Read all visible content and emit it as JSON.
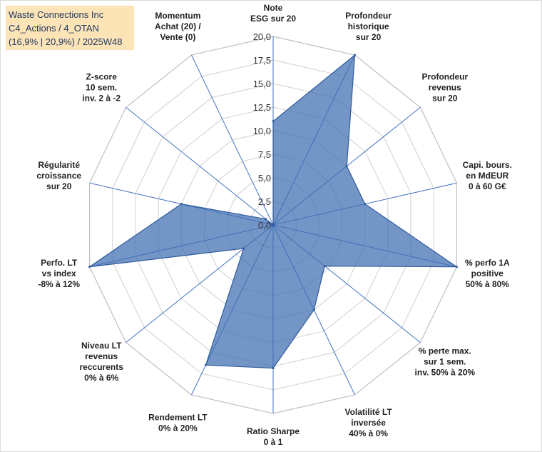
{
  "header": {
    "line1": "Waste Connections Inc",
    "line2": "C4_Actions / 4_OTAN",
    "line3": "(16,9% | 20,9%) / 2025W48"
  },
  "colors": {
    "fill": "#3e6eb0",
    "stroke": "#2e5a9c",
    "spoke": "#4472c4",
    "grid": "#d0d0d0",
    "title_bg": "#fce4b6"
  },
  "chart_data": {
    "type": "radar",
    "title": "Waste Connections Inc",
    "rmin": 0,
    "rmax": 20,
    "tick_step": 2.5,
    "tick_labels": [
      "0,0",
      "2,5",
      "5,0",
      "7,5",
      "10,0",
      "12,5",
      "15,0",
      "17,5",
      "20,0"
    ],
    "axes": [
      {
        "label_lines": [
          "Note",
          "ESG sur 20"
        ],
        "value": 11.0
      },
      {
        "label_lines": [
          "Profondeur",
          "historique",
          "sur 20"
        ],
        "value": 20.0
      },
      {
        "label_lines": [
          "Profondeur",
          "revenus",
          "sur 20"
        ],
        "value": 10.0
      },
      {
        "label_lines": [
          "Capi. bours.",
          "en MdEUR",
          "0 à 60 G€"
        ],
        "value": 10.0
      },
      {
        "label_lines": [
          "% perfo 1A",
          "positive",
          "50% à 80%"
        ],
        "value": 20.0
      },
      {
        "label_lines": [
          "% perte max.",
          "sur 1 sem.",
          "inv. 50% à 20%"
        ],
        "value": 7.0
      },
      {
        "label_lines": [
          "Volatilité LT",
          "inversée",
          "40% à 0%"
        ],
        "value": 10.0
      },
      {
        "label_lines": [
          "Ratio Sharpe",
          "0 à 1"
        ],
        "value": 15.2
      },
      {
        "label_lines": [
          "Rendement LT",
          "0% à 20%"
        ],
        "value": 16.5
      },
      {
        "label_lines": [
          "Niveau LT",
          "revenus",
          "reccurents",
          "0% à 6%"
        ],
        "value": 4.0
      },
      {
        "label_lines": [
          "Perfo. LT",
          "vs index",
          "-8% à 12%"
        ],
        "value": 20.0
      },
      {
        "label_lines": [
          "Régularité",
          "croissance",
          "sur 20"
        ],
        "value": 10.0
      },
      {
        "label_lines": [
          "Z-score",
          "10 sem.",
          "inv. 2 à -2"
        ],
        "value": 1.0
      },
      {
        "label_lines": [
          "Momentum",
          "Achat (20) /",
          "Vente (0)"
        ],
        "value": 0.0
      }
    ]
  }
}
